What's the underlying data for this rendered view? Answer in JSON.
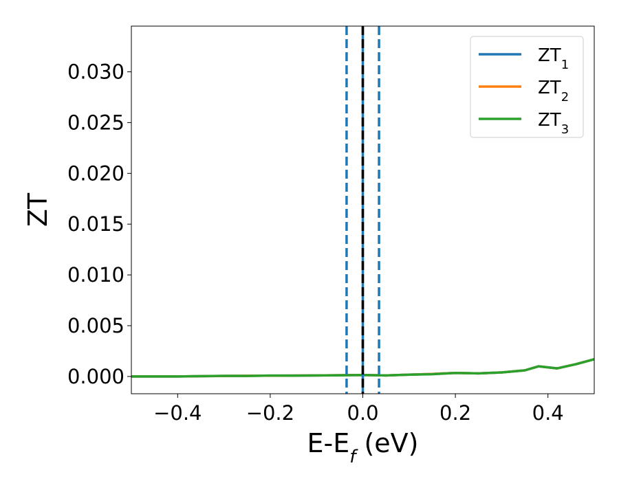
{
  "chart_data": {
    "type": "line",
    "xlabel": {
      "base": "E-E",
      "sub": "f",
      "suffix": " (eV)"
    },
    "ylabel": "ZT",
    "xlim": [
      -0.5,
      0.5
    ],
    "ylim": [
      -0.0017,
      0.0345
    ],
    "xticks": [
      -0.4,
      -0.2,
      0.0,
      0.2,
      0.4
    ],
    "xtick_labels": [
      "−0.4",
      "−0.2",
      "0.0",
      "0.2",
      "0.4"
    ],
    "yticks": [
      0.0,
      0.005,
      0.01,
      0.015,
      0.02,
      0.025,
      0.03
    ],
    "ytick_labels": [
      "0.000",
      "0.005",
      "0.010",
      "0.015",
      "0.020",
      "0.025",
      "0.030"
    ],
    "grid": false,
    "legend_position": "top-right",
    "series": [
      {
        "name": "ZT",
        "sub": "1",
        "color": "#1f77b4",
        "x": [
          -0.5,
          -0.4,
          -0.3,
          -0.2,
          -0.1,
          0.0,
          0.05,
          0.1,
          0.15,
          0.2,
          0.25,
          0.3,
          0.35,
          0.38,
          0.42,
          0.46,
          0.5
        ],
        "y": [
          0.0,
          0.0,
          5e-05,
          8e-05,
          0.0001,
          0.00015,
          0.0001,
          0.00018,
          0.00025,
          0.00035,
          0.0003,
          0.0004,
          0.0006,
          0.001,
          0.0008,
          0.0012,
          0.0017
        ]
      },
      {
        "name": "ZT",
        "sub": "2",
        "color": "#ff7f0e",
        "x": [
          -0.5,
          -0.4,
          -0.3,
          -0.2,
          -0.1,
          0.0,
          0.05,
          0.1,
          0.15,
          0.2,
          0.25,
          0.3,
          0.35,
          0.38,
          0.42,
          0.46,
          0.5
        ],
        "y": [
          0.0,
          0.0,
          5e-05,
          8e-05,
          0.0001,
          0.00015,
          0.0001,
          0.00018,
          0.00025,
          0.00035,
          0.0003,
          0.0004,
          0.0006,
          0.001,
          0.0008,
          0.0012,
          0.0017
        ]
      },
      {
        "name": "ZT",
        "sub": "3",
        "color": "#2ca02c",
        "x": [
          -0.5,
          -0.45,
          -0.4,
          -0.35,
          -0.3,
          -0.25,
          -0.2,
          -0.15,
          -0.1,
          -0.05,
          0.0,
          0.05,
          0.1,
          0.15,
          0.2,
          0.25,
          0.3,
          0.35,
          0.38,
          0.42,
          0.46,
          0.5
        ],
        "y": [
          0.0,
          0.0,
          0.0,
          3e-05,
          6e-05,
          5e-05,
          9e-05,
          7e-05,
          0.0001,
          0.00011,
          0.00015,
          0.0001,
          0.00018,
          0.00022,
          0.00035,
          0.0003,
          0.0004,
          0.0006,
          0.001,
          0.0008,
          0.0012,
          0.0017
        ]
      }
    ],
    "vlines": [
      {
        "x": -0.035,
        "style": "dashed",
        "color": "#1f77b4"
      },
      {
        "x": 0.035,
        "style": "dashed",
        "color": "#1f77b4"
      },
      {
        "x": 0.0,
        "style": "solid",
        "color": "#1f77b4"
      },
      {
        "x": 0.0,
        "style": "dashed",
        "color": "#000000"
      }
    ]
  }
}
